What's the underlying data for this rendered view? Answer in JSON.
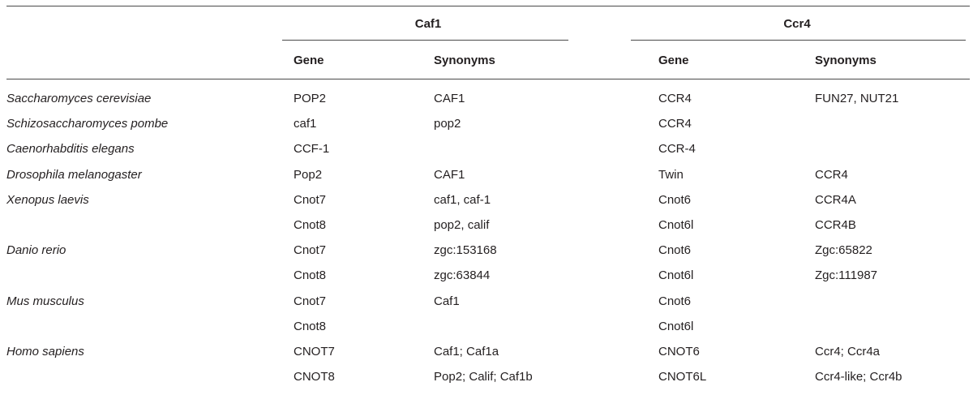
{
  "header": {
    "caf1_group": "Caf1",
    "ccr4_group": "Ccr4",
    "gene_label": "Gene",
    "synonyms_label": "Synonyms"
  },
  "rows": [
    {
      "species": "Saccharomyces cerevisiae",
      "caf1_gene": "POP2",
      "caf1_synonyms": "CAF1",
      "ccr4_gene": "CCR4",
      "ccr4_synonyms": "FUN27, NUT21"
    },
    {
      "species": "Schizosaccharomyces pombe",
      "caf1_gene": "caf1",
      "caf1_synonyms": "pop2",
      "ccr4_gene": "CCR4",
      "ccr4_synonyms": ""
    },
    {
      "species": "Caenorhabditis elegans",
      "caf1_gene": "CCF-1",
      "caf1_synonyms": "",
      "ccr4_gene": "CCR-4",
      "ccr4_synonyms": ""
    },
    {
      "species": "Drosophila melanogaster",
      "caf1_gene": "Pop2",
      "caf1_synonyms": "CAF1",
      "ccr4_gene": "Twin",
      "ccr4_synonyms": "CCR4"
    },
    {
      "species": "Xenopus laevis",
      "caf1_gene": "Cnot7",
      "caf1_synonyms": "caf1, caf-1",
      "ccr4_gene": "Cnot6",
      "ccr4_synonyms": "CCR4A"
    },
    {
      "species": "",
      "caf1_gene": "Cnot8",
      "caf1_synonyms": "pop2, calif",
      "ccr4_gene": "Cnot6l",
      "ccr4_synonyms": "CCR4B"
    },
    {
      "species": "Danio rerio",
      "caf1_gene": "Cnot7",
      "caf1_synonyms": "zgc:153168",
      "ccr4_gene": "Cnot6",
      "ccr4_synonyms": "Zgc:65822"
    },
    {
      "species": "",
      "caf1_gene": "Cnot8",
      "caf1_synonyms": "zgc:63844",
      "ccr4_gene": "Cnot6l",
      "ccr4_synonyms": "Zgc:111987"
    },
    {
      "species": "Mus musculus",
      "caf1_gene": "Cnot7",
      "caf1_synonyms": "Caf1",
      "ccr4_gene": "Cnot6",
      "ccr4_synonyms": ""
    },
    {
      "species": "",
      "caf1_gene": "Cnot8",
      "caf1_synonyms": "",
      "ccr4_gene": "Cnot6l",
      "ccr4_synonyms": ""
    },
    {
      "species": "Homo sapiens",
      "caf1_gene": "CNOT7",
      "caf1_synonyms": "Caf1; Caf1a",
      "ccr4_gene": "CNOT6",
      "ccr4_synonyms": "Ccr4; Ccr4a"
    },
    {
      "species": "",
      "caf1_gene": "CNOT8",
      "caf1_synonyms": "Pop2; Calif; Caf1b",
      "ccr4_gene": "CNOT6L",
      "ccr4_synonyms": "Ccr4-like; Ccr4b"
    }
  ]
}
